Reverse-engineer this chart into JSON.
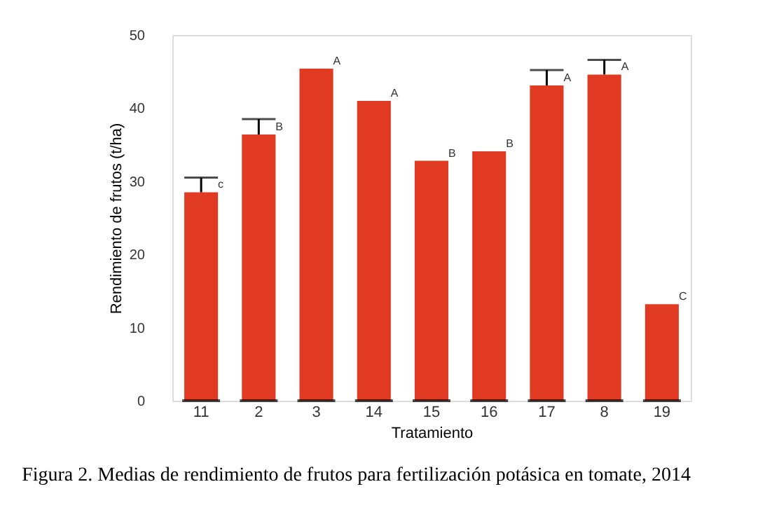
{
  "chart_data": {
    "type": "bar",
    "title": "Figura 2. Medias de rendimiento de frutos para fertilización potásica en tomate, 2014",
    "xlabel": "Tratamiento",
    "ylabel": "Rendimiento de frutos (t/ha)",
    "categories": [
      "11",
      "2",
      "3",
      "14",
      "15",
      "16",
      "17",
      "8",
      "19"
    ],
    "values": [
      28.5,
      36.4,
      45.4,
      41.0,
      32.8,
      34.1,
      43.1,
      44.6,
      13.2
    ],
    "errors": [
      [
        28.5,
        30.5
      ],
      [
        36.4,
        38.5
      ],
      null,
      null,
      null,
      null,
      [
        43.1,
        45.2
      ],
      [
        44.6,
        46.6
      ],
      null
    ],
    "color": "#e03a22",
    "ylim": [
      0,
      50
    ],
    "yticks": [
      0,
      10,
      20,
      30,
      40,
      50
    ],
    "grid": false,
    "annotations": [
      {
        "text": "c",
        "x": "11",
        "y": 28.5
      },
      {
        "text": "B",
        "x": "2",
        "y": 36.4
      },
      {
        "text": "A",
        "x": "3",
        "y": 45.4
      },
      {
        "text": "A",
        "x": "14",
        "y": 41.0
      },
      {
        "text": "B",
        "x": "15",
        "y": 32.8
      },
      {
        "text": "B",
        "x": "16",
        "y": 34.1
      },
      {
        "text": "A",
        "x": "17",
        "y": 43.1
      },
      {
        "text": "A",
        "x": "8",
        "y": 44.6
      },
      {
        "text": "C",
        "x": "19",
        "y": 13.2
      }
    ]
  }
}
